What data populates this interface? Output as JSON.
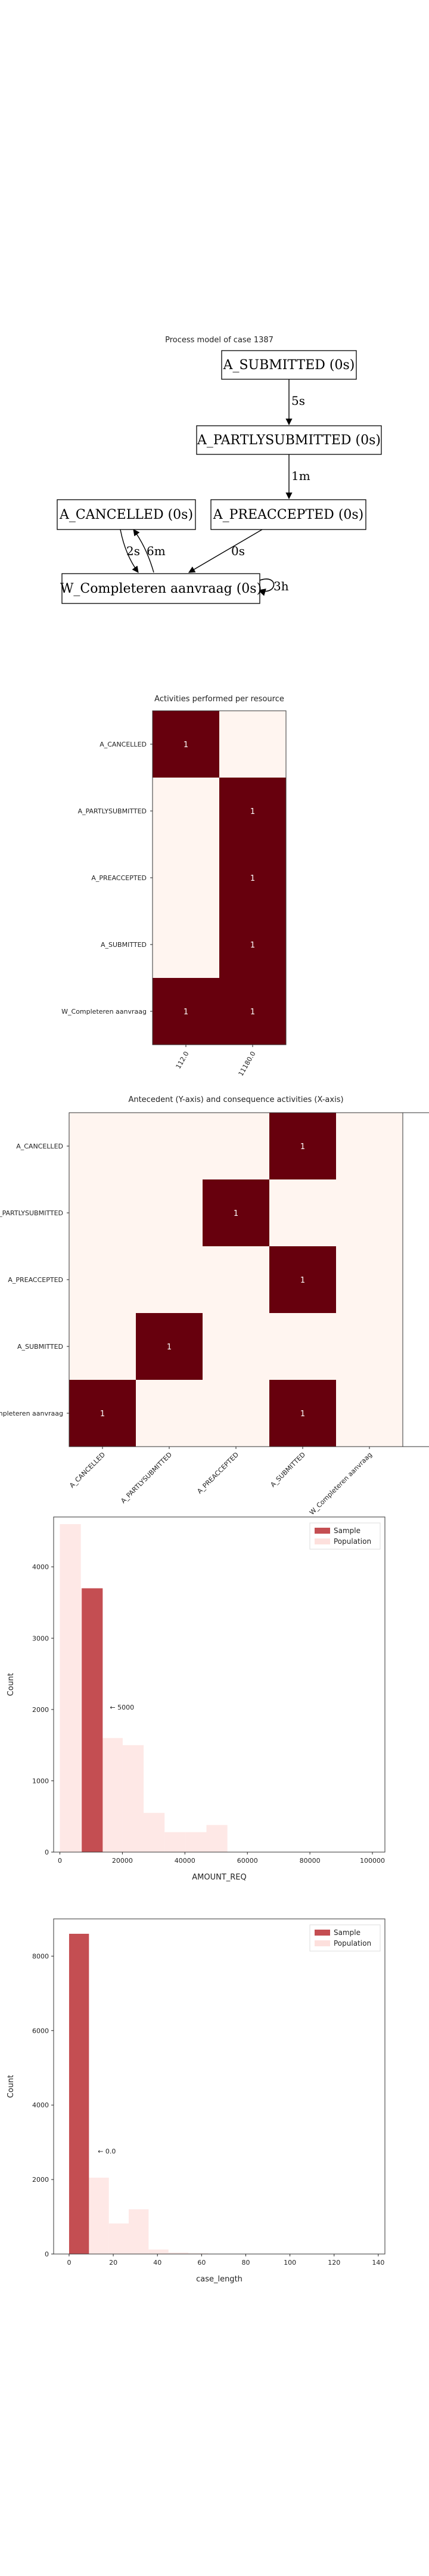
{
  "chart_data": [
    {
      "type": "diagram",
      "title": "Process model of case 1387",
      "nodes": [
        {
          "id": "submitted",
          "label": "A_SUBMITTED (0s)"
        },
        {
          "id": "partly",
          "label": "A_PARTLYSUBMITTED (0s)"
        },
        {
          "id": "cancelled",
          "label": "A_CANCELLED (0s)"
        },
        {
          "id": "preaccepted",
          "label": "A_PREACCEPTED (0s)"
        },
        {
          "id": "completeren",
          "label": "W_Completeren aanvraag (0s)"
        }
      ],
      "edges": [
        {
          "from": "submitted",
          "to": "partly",
          "label": "5s"
        },
        {
          "from": "partly",
          "to": "preaccepted",
          "label": "1m"
        },
        {
          "from": "preaccepted",
          "to": "completeren",
          "label": "0s"
        },
        {
          "from": "cancelled",
          "to": "completeren",
          "label": "2s"
        },
        {
          "from": "completeren",
          "to": "cancelled",
          "label": "6m"
        },
        {
          "from": "completeren",
          "to": "completeren",
          "label": "3h"
        }
      ]
    },
    {
      "type": "heatmap",
      "title": "Activities performed per resource",
      "rows": [
        "A_CANCELLED",
        "A_PARTLYSUBMITTED",
        "A_PREACCEPTED",
        "A_SUBMITTED",
        "W_Completeren aanvraag"
      ],
      "cols": [
        "112.0",
        "11180.0"
      ],
      "values": [
        [
          1,
          null
        ],
        [
          null,
          1
        ],
        [
          null,
          1
        ],
        [
          null,
          1
        ],
        [
          1,
          1
        ]
      ],
      "colors": {
        "high": "#67000d",
        "low": "#fff5f0"
      }
    },
    {
      "type": "heatmap",
      "title": "Antecedent (Y-axis) and consequence activities (X-axis)",
      "rows": [
        "A_CANCELLED",
        "A_PARTLYSUBMITTED",
        "A_PREACCEPTED",
        "A_SUBMITTED",
        "W_Completeren aanvraag"
      ],
      "cols": [
        "A_CANCELLED",
        "A_PARTLYSUBMITTED",
        "A_PREACCEPTED",
        "A_SUBMITTED",
        "W_Completeren aanvraag"
      ],
      "values": [
        [
          null,
          null,
          null,
          1,
          null
        ],
        [
          null,
          null,
          1,
          null,
          null
        ],
        [
          null,
          null,
          null,
          1,
          null
        ],
        [
          null,
          1,
          null,
          null,
          null
        ],
        [
          1,
          null,
          null,
          1,
          null
        ]
      ],
      "colors": {
        "high": "#67000d",
        "low": "#fff5f0"
      }
    },
    {
      "type": "bar",
      "xlabel": "AMOUNT_REQ",
      "ylabel": "Count",
      "xlim": [
        -2000,
        104000
      ],
      "ylim": [
        0,
        4700
      ],
      "xticks": [
        0,
        20000,
        40000,
        60000,
        80000,
        100000
      ],
      "yticks": [
        0,
        1000,
        2000,
        3000,
        4000
      ],
      "bin_width": 6700,
      "series": [
        {
          "name": "Sample",
          "color": "#c44e52",
          "bins": [
            {
              "x0": 7000,
              "count": 3700
            }
          ]
        },
        {
          "name": "Population",
          "color": "#fde0dd",
          "bins": [
            {
              "x0": 0,
              "count": 4600
            },
            {
              "x0": 6700,
              "count": 3700
            },
            {
              "x0": 13400,
              "count": 1600
            },
            {
              "x0": 20100,
              "count": 1500
            },
            {
              "x0": 26800,
              "count": 550
            },
            {
              "x0": 33500,
              "count": 280
            },
            {
              "x0": 40200,
              "count": 280
            },
            {
              "x0": 46900,
              "count": 380
            }
          ]
        }
      ],
      "annotation": {
        "text": "← 5000",
        "x": 16000,
        "y": 2000
      },
      "legend": "top-right"
    },
    {
      "type": "bar",
      "xlabel": "case_length",
      "ylabel": "Count",
      "xlim": [
        -7,
        143
      ],
      "ylim": [
        0,
        9000
      ],
      "xticks": [
        0,
        20,
        40,
        60,
        80,
        100,
        120,
        140
      ],
      "yticks": [
        0,
        2000,
        4000,
        6000,
        8000
      ],
      "bin_width": 9,
      "series": [
        {
          "name": "Sample",
          "color": "#c44e52",
          "bins": [
            {
              "x0": 0,
              "count": 8600
            }
          ]
        },
        {
          "name": "Population",
          "color": "#fde0dd",
          "bins": [
            {
              "x0": 9,
              "count": 2050
            },
            {
              "x0": 18,
              "count": 820
            },
            {
              "x0": 27,
              "count": 1200
            },
            {
              "x0": 36,
              "count": 120
            },
            {
              "x0": 45,
              "count": 40
            },
            {
              "x0": 54,
              "count": 20
            }
          ]
        }
      ],
      "annotation": {
        "text": "← 0.0",
        "x": 13,
        "y": 2700
      },
      "legend": "top-right"
    }
  ]
}
